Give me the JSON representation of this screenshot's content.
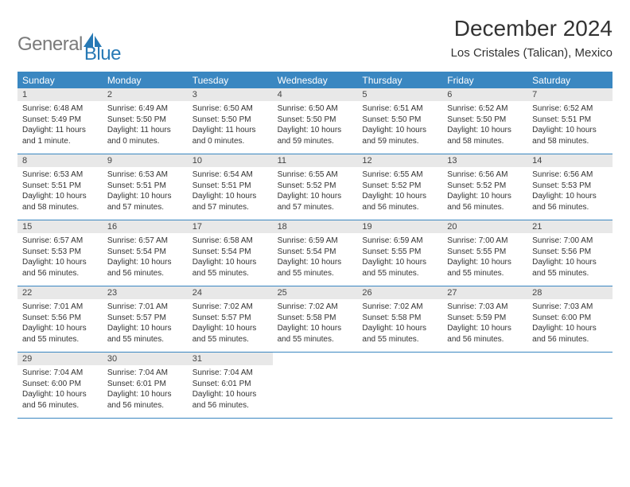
{
  "logo": {
    "gray": "General",
    "blue": "Blue"
  },
  "title": "December 2024",
  "location": "Los Cristales (Talican), Mexico",
  "colors": {
    "header_bg": "#3a87c1",
    "header_text": "#ffffff",
    "border": "#3a87c1",
    "daynum_bg": "#e8e8e8",
    "logo_gray": "#7a7a7a",
    "logo_blue": "#2779b5"
  },
  "dayNames": [
    "Sunday",
    "Monday",
    "Tuesday",
    "Wednesday",
    "Thursday",
    "Friday",
    "Saturday"
  ],
  "weeks": [
    [
      {
        "num": "1",
        "sunrise": "6:48 AM",
        "sunset": "5:49 PM",
        "daylight": "11 hours and 1 minute."
      },
      {
        "num": "2",
        "sunrise": "6:49 AM",
        "sunset": "5:50 PM",
        "daylight": "11 hours and 0 minutes."
      },
      {
        "num": "3",
        "sunrise": "6:50 AM",
        "sunset": "5:50 PM",
        "daylight": "11 hours and 0 minutes."
      },
      {
        "num": "4",
        "sunrise": "6:50 AM",
        "sunset": "5:50 PM",
        "daylight": "10 hours and 59 minutes."
      },
      {
        "num": "5",
        "sunrise": "6:51 AM",
        "sunset": "5:50 PM",
        "daylight": "10 hours and 59 minutes."
      },
      {
        "num": "6",
        "sunrise": "6:52 AM",
        "sunset": "5:50 PM",
        "daylight": "10 hours and 58 minutes."
      },
      {
        "num": "7",
        "sunrise": "6:52 AM",
        "sunset": "5:51 PM",
        "daylight": "10 hours and 58 minutes."
      }
    ],
    [
      {
        "num": "8",
        "sunrise": "6:53 AM",
        "sunset": "5:51 PM",
        "daylight": "10 hours and 58 minutes."
      },
      {
        "num": "9",
        "sunrise": "6:53 AM",
        "sunset": "5:51 PM",
        "daylight": "10 hours and 57 minutes."
      },
      {
        "num": "10",
        "sunrise": "6:54 AM",
        "sunset": "5:51 PM",
        "daylight": "10 hours and 57 minutes."
      },
      {
        "num": "11",
        "sunrise": "6:55 AM",
        "sunset": "5:52 PM",
        "daylight": "10 hours and 57 minutes."
      },
      {
        "num": "12",
        "sunrise": "6:55 AM",
        "sunset": "5:52 PM",
        "daylight": "10 hours and 56 minutes."
      },
      {
        "num": "13",
        "sunrise": "6:56 AM",
        "sunset": "5:52 PM",
        "daylight": "10 hours and 56 minutes."
      },
      {
        "num": "14",
        "sunrise": "6:56 AM",
        "sunset": "5:53 PM",
        "daylight": "10 hours and 56 minutes."
      }
    ],
    [
      {
        "num": "15",
        "sunrise": "6:57 AM",
        "sunset": "5:53 PM",
        "daylight": "10 hours and 56 minutes."
      },
      {
        "num": "16",
        "sunrise": "6:57 AM",
        "sunset": "5:54 PM",
        "daylight": "10 hours and 56 minutes."
      },
      {
        "num": "17",
        "sunrise": "6:58 AM",
        "sunset": "5:54 PM",
        "daylight": "10 hours and 55 minutes."
      },
      {
        "num": "18",
        "sunrise": "6:59 AM",
        "sunset": "5:54 PM",
        "daylight": "10 hours and 55 minutes."
      },
      {
        "num": "19",
        "sunrise": "6:59 AM",
        "sunset": "5:55 PM",
        "daylight": "10 hours and 55 minutes."
      },
      {
        "num": "20",
        "sunrise": "7:00 AM",
        "sunset": "5:55 PM",
        "daylight": "10 hours and 55 minutes."
      },
      {
        "num": "21",
        "sunrise": "7:00 AM",
        "sunset": "5:56 PM",
        "daylight": "10 hours and 55 minutes."
      }
    ],
    [
      {
        "num": "22",
        "sunrise": "7:01 AM",
        "sunset": "5:56 PM",
        "daylight": "10 hours and 55 minutes."
      },
      {
        "num": "23",
        "sunrise": "7:01 AM",
        "sunset": "5:57 PM",
        "daylight": "10 hours and 55 minutes."
      },
      {
        "num": "24",
        "sunrise": "7:02 AM",
        "sunset": "5:57 PM",
        "daylight": "10 hours and 55 minutes."
      },
      {
        "num": "25",
        "sunrise": "7:02 AM",
        "sunset": "5:58 PM",
        "daylight": "10 hours and 55 minutes."
      },
      {
        "num": "26",
        "sunrise": "7:02 AM",
        "sunset": "5:58 PM",
        "daylight": "10 hours and 55 minutes."
      },
      {
        "num": "27",
        "sunrise": "7:03 AM",
        "sunset": "5:59 PM",
        "daylight": "10 hours and 56 minutes."
      },
      {
        "num": "28",
        "sunrise": "7:03 AM",
        "sunset": "6:00 PM",
        "daylight": "10 hours and 56 minutes."
      }
    ],
    [
      {
        "num": "29",
        "sunrise": "7:04 AM",
        "sunset": "6:00 PM",
        "daylight": "10 hours and 56 minutes."
      },
      {
        "num": "30",
        "sunrise": "7:04 AM",
        "sunset": "6:01 PM",
        "daylight": "10 hours and 56 minutes."
      },
      {
        "num": "31",
        "sunrise": "7:04 AM",
        "sunset": "6:01 PM",
        "daylight": "10 hours and 56 minutes."
      },
      null,
      null,
      null,
      null
    ]
  ],
  "labels": {
    "sunrise": "Sunrise:",
    "sunset": "Sunset:",
    "daylight": "Daylight:"
  }
}
